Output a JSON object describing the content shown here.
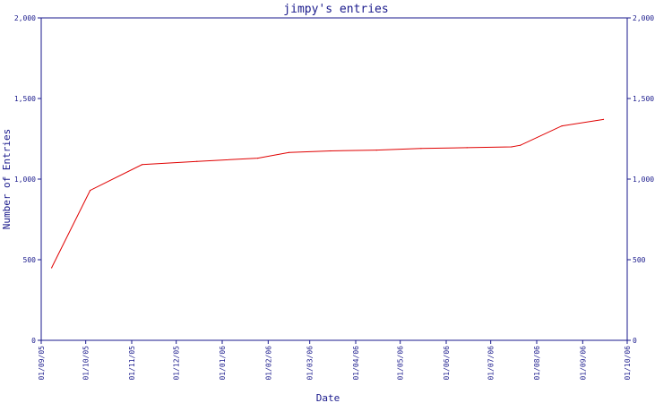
{
  "chart_data": {
    "type": "line",
    "title": "jimpy's entries",
    "xlabel": "Date",
    "ylabel": "Number of Entries",
    "x_ticks": [
      "01/09/05",
      "01/10/05",
      "01/11/05",
      "01/12/05",
      "01/01/06",
      "01/02/06",
      "01/03/06",
      "01/04/06",
      "01/05/06",
      "01/06/06",
      "01/07/06",
      "01/08/06",
      "01/09/06",
      "01/10/06"
    ],
    "y_ticks": [
      "0",
      "500",
      "1,000",
      "1,500",
      "2,000"
    ],
    "ylim": [
      0,
      2000
    ],
    "series": [
      {
        "color": "#e00000",
        "points": [
          {
            "x": "2005-09-08",
            "y": 450
          },
          {
            "x": "2005-10-04",
            "y": 930
          },
          {
            "x": "2005-11-08",
            "y": 1090
          },
          {
            "x": "2005-12-15",
            "y": 1110
          },
          {
            "x": "2006-01-25",
            "y": 1130
          },
          {
            "x": "2006-02-15",
            "y": 1165
          },
          {
            "x": "2006-03-15",
            "y": 1175
          },
          {
            "x": "2006-04-15",
            "y": 1180
          },
          {
            "x": "2006-05-15",
            "y": 1190
          },
          {
            "x": "2006-06-15",
            "y": 1195
          },
          {
            "x": "2006-07-15",
            "y": 1200
          },
          {
            "x": "2006-07-21",
            "y": 1210
          },
          {
            "x": "2006-08-18",
            "y": 1330
          },
          {
            "x": "2006-09-15",
            "y": 1370
          }
        ]
      }
    ],
    "grid": false,
    "legend": "none"
  },
  "colors": {
    "axis": "#1a1a8c",
    "text": "#1a1a8c",
    "line": "#e00000",
    "background": "#ffffff"
  }
}
